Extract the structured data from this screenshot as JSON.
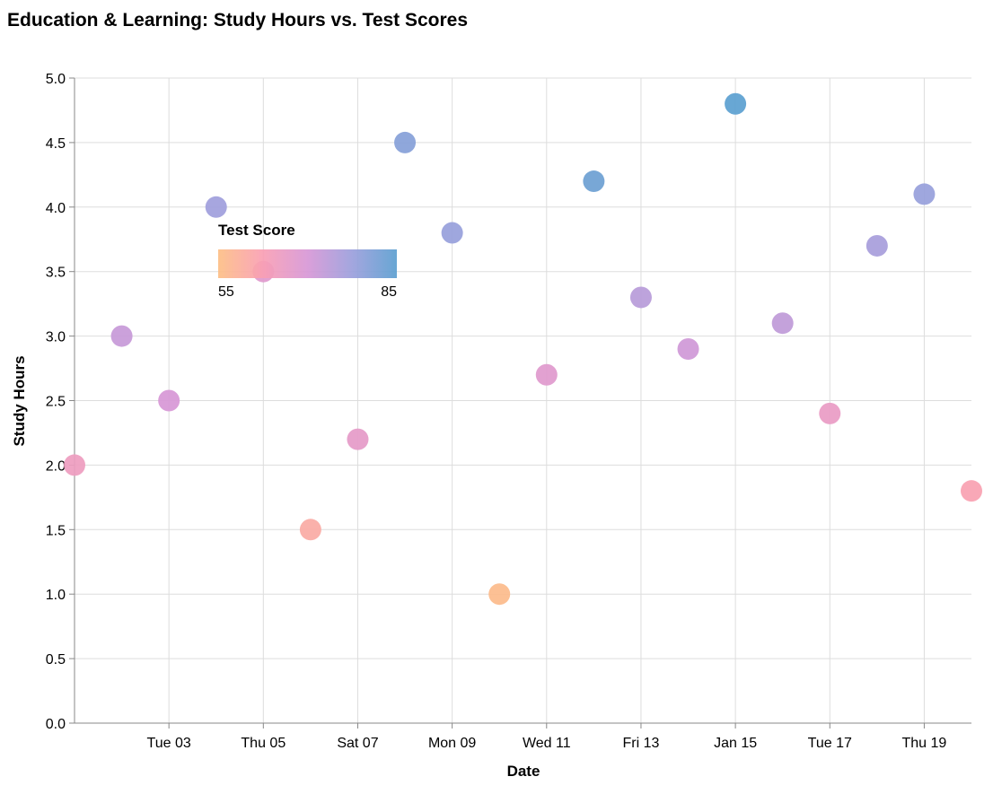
{
  "chart_data": {
    "type": "scatter",
    "title": "Education & Learning: Study Hours vs. Test Scores",
    "xlabel": "Date",
    "ylabel": "Study Hours",
    "x_type": "date",
    "x_range": [
      "2023-01-01",
      "2023-01-20"
    ],
    "x_tick_labels": [
      "Tue 03",
      "Thu 05",
      "Sat 07",
      "Mon 09",
      "Wed 11",
      "Fri 13",
      "Jan 15",
      "Tue 17",
      "Thu 19"
    ],
    "ylim": [
      0,
      5
    ],
    "y_tick_labels": [
      "0.0",
      "0.5",
      "1.0",
      "1.5",
      "2.0",
      "2.5",
      "3.0",
      "3.5",
      "4.0",
      "4.5",
      "5.0"
    ],
    "grid": true,
    "color_encoding": "Test Score",
    "legend": {
      "title": "Test Score",
      "min_label": "55",
      "max_label": "85",
      "placement": "inside-top-left",
      "gradient": [
        "#fdbf85",
        "#f99fb4",
        "#d797d6",
        "#9b9fdc",
        "#5b9fd0"
      ]
    },
    "points": [
      {
        "date": "2023-01-01",
        "study_hours": 2.0,
        "test_score": 65
      },
      {
        "date": "2023-01-02",
        "study_hours": 3.0,
        "test_score": 72
      },
      {
        "date": "2023-01-03",
        "study_hours": 2.5,
        "test_score": 70
      },
      {
        "date": "2023-01-04",
        "study_hours": 4.0,
        "test_score": 77
      },
      {
        "date": "2023-01-05",
        "study_hours": 3.5,
        "test_score": 68
      },
      {
        "date": "2023-01-06",
        "study_hours": 1.5,
        "test_score": 60
      },
      {
        "date": "2023-01-07",
        "study_hours": 2.2,
        "test_score": 67
      },
      {
        "date": "2023-01-08",
        "study_hours": 4.5,
        "test_score": 80
      },
      {
        "date": "2023-01-09",
        "study_hours": 3.8,
        "test_score": 78
      },
      {
        "date": "2023-01-10",
        "study_hours": 1.0,
        "test_score": 56
      },
      {
        "date": "2023-01-11",
        "study_hours": 2.7,
        "test_score": 68
      },
      {
        "date": "2023-01-12",
        "study_hours": 4.2,
        "test_score": 83
      },
      {
        "date": "2023-01-13",
        "study_hours": 3.3,
        "test_score": 74
      },
      {
        "date": "2023-01-14",
        "study_hours": 2.9,
        "test_score": 71
      },
      {
        "date": "2023-01-15",
        "study_hours": 4.8,
        "test_score": 85
      },
      {
        "date": "2023-01-16",
        "study_hours": 3.1,
        "test_score": 73
      },
      {
        "date": "2023-01-17",
        "study_hours": 2.4,
        "test_score": 66
      },
      {
        "date": "2023-01-18",
        "study_hours": 3.7,
        "test_score": 76
      },
      {
        "date": "2023-01-19",
        "study_hours": 4.1,
        "test_score": 78
      },
      {
        "date": "2023-01-20",
        "study_hours": 1.8,
        "test_score": 62
      }
    ]
  }
}
